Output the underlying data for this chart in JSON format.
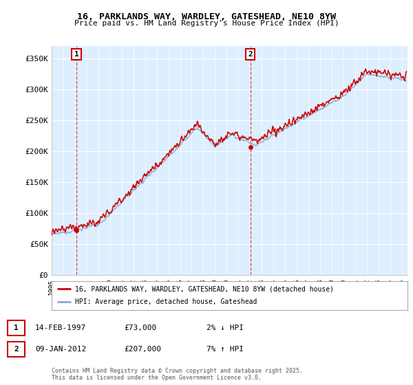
{
  "title": "16, PARKLANDS WAY, WARDLEY, GATESHEAD, NE10 8YW",
  "subtitle": "Price paid vs. HM Land Registry's House Price Index (HPI)",
  "ylabel_ticks": [
    "£0",
    "£50K",
    "£100K",
    "£150K",
    "£200K",
    "£250K",
    "£300K",
    "£350K"
  ],
  "ylim": [
    0,
    370000
  ],
  "xlim_start": 1995.0,
  "xlim_end": 2025.5,
  "sale1_x": 1997.12,
  "sale1_y": 73000,
  "sale2_x": 2012.03,
  "sale2_y": 207000,
  "annotation1_label": "1",
  "annotation1_date": "14-FEB-1997",
  "annotation1_price": "£73,000",
  "annotation1_note": "2% ↓ HPI",
  "annotation2_label": "2",
  "annotation2_date": "09-JAN-2012",
  "annotation2_price": "£207,000",
  "annotation2_note": "7% ↑ HPI",
  "legend_line1": "16, PARKLANDS WAY, WARDLEY, GATESHEAD, NE10 8YW (detached house)",
  "legend_line2": "HPI: Average price, detached house, Gateshead",
  "footer": "Contains HM Land Registry data © Crown copyright and database right 2025.\nThis data is licensed under the Open Government Licence v3.0.",
  "line1_color": "#cc0000",
  "line2_color": "#88aacc",
  "bg_color": "#ddeeff",
  "vline_color": "#cc0000"
}
